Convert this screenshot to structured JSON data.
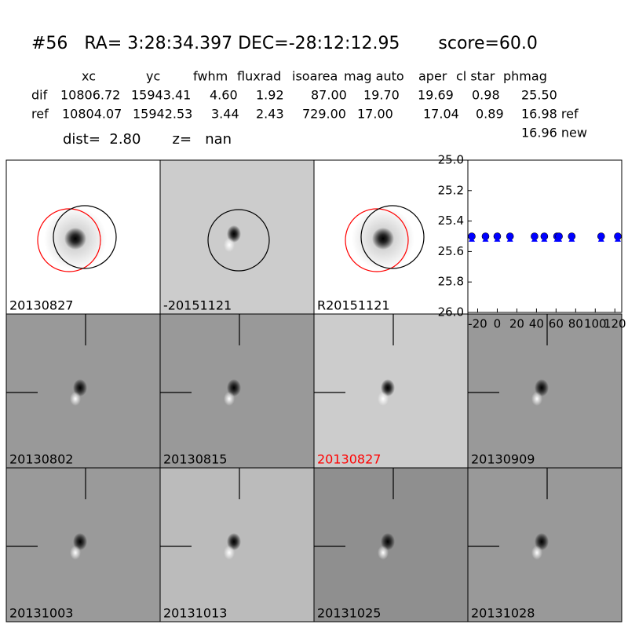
{
  "header": {
    "title": "#56   RA= 3:28:34.397 DEC=-28:12:12.95       score=60.0"
  },
  "table": {
    "columns": [
      "xc",
      "yc",
      "fwhm",
      "fluxrad",
      "isoarea",
      "mag auto",
      "aper",
      "cl star",
      "phmag"
    ],
    "rows": [
      [
        "dif",
        "10806.72",
        "15943.41",
        "4.60",
        "1.92",
        "87.00",
        "19.70",
        "19.69",
        "0.98",
        "25.50"
      ],
      [
        "ref",
        "10804.07",
        "15942.53",
        "3.44",
        "2.43",
        "729.00",
        "17.00",
        "17.04",
        "0.89",
        "16.98 ref"
      ]
    ],
    "note": "16.96 new"
  },
  "summary": "dist=  2.80       z=   nan",
  "panels": [
    {
      "label": "20130827"
    },
    {
      "label": "-20151121"
    },
    {
      "label": "R20151121"
    },
    {
      "label": "20130802"
    },
    {
      "label": "20130815"
    },
    {
      "label": "20130827",
      "color": "#ff0000"
    },
    {
      "label": "20130909"
    },
    {
      "label": "20131003"
    },
    {
      "label": "20131013"
    },
    {
      "label": "20131025"
    },
    {
      "label": "20131028"
    }
  ],
  "chart_data": {
    "type": "scatter",
    "xlim": [
      -30,
      127
    ],
    "ylim": [
      25,
      26
    ],
    "y_inverted": true,
    "xticks": [
      -20,
      0,
      20,
      40,
      60,
      80,
      100,
      120
    ],
    "yticks": [
      {
        "value": 25,
        "label": "25.0"
      },
      25.2,
      25.4,
      25.6,
      25.8,
      {
        "value": 26,
        "label": "26.0"
      }
    ],
    "series": [
      {
        "marker": "circle",
        "color": "#0000ff",
        "x": [
          -26,
          -12,
          0,
          13,
          38,
          48,
          61,
          63,
          76,
          106,
          123
        ],
        "values": [
          25.5,
          25.5,
          25.5,
          25.5,
          25.5,
          25.5,
          25.5,
          25.5,
          25.5,
          25.5,
          25.5
        ]
      },
      {
        "marker": "triangle",
        "color": "#0000ff",
        "x": [
          -26,
          -12,
          0,
          13,
          38,
          48,
          61,
          63,
          76,
          106,
          123
        ],
        "values": [
          25.52,
          25.52,
          25.52,
          25.52,
          25.52,
          25.52,
          25.52,
          25.52,
          25.52,
          25.52,
          25.52
        ]
      }
    ]
  }
}
